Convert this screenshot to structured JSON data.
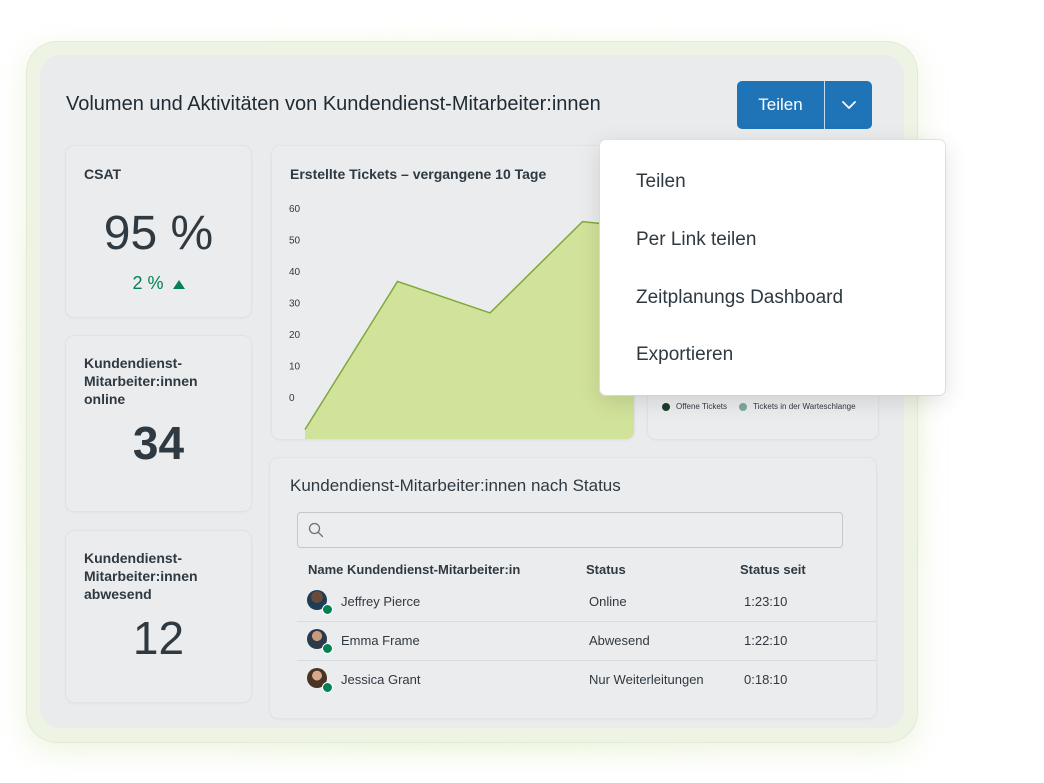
{
  "header": {
    "title": "Volumen und Aktivitäten von Kundendienst-Mitarbeiter:innen",
    "share_label": "Teilen",
    "brand_color": "#1f73b7"
  },
  "kpis": {
    "csat": {
      "label": "CSAT",
      "value": "95 %",
      "trend": "2 %",
      "trend_color": "#038153"
    },
    "online": {
      "label": "Kundendienst-Mitarbeiter:innen online",
      "value": "34"
    },
    "absent": {
      "label": "Kundendienst-Mitarbeiter:innen abwesend",
      "value": "12"
    }
  },
  "chart_data": {
    "type": "area",
    "title": "Erstellte Tickets – vergangene 10 Tage",
    "yticks": [
      "60",
      "50",
      "40",
      "30",
      "20",
      "10",
      "0"
    ],
    "ylim": [
      0,
      60
    ],
    "x": [
      0,
      1,
      2,
      3,
      4
    ],
    "values": [
      -10,
      37,
      27,
      56,
      53
    ],
    "fill_color": "#d1e29a",
    "line_color": "#7fa83a",
    "grid": false
  },
  "legend": {
    "items": [
      {
        "label": "Offene Tickets",
        "color": "#1e3d2a"
      },
      {
        "label": "Tickets in der Warteschlange",
        "color": "#7ea8a0"
      }
    ]
  },
  "status_table": {
    "title": "Kundendienst-Mitarbeiter:innen nach Status",
    "search_icon": "search-icon",
    "columns": [
      "Name Kundendienst-Mitarbeiter:in",
      "Status",
      "Status seit"
    ],
    "rows": [
      {
        "name": "Jeffrey Pierce",
        "status": "Online",
        "since": "1:23:10"
      },
      {
        "name": "Emma Frame",
        "status": "Abwesend",
        "since": "1:22:10"
      },
      {
        "name": "Jessica Grant",
        "status": "Nur Weiterleitungen",
        "since": "0:18:10"
      }
    ]
  },
  "share_menu": {
    "items": [
      "Teilen",
      "Per Link teilen",
      "Zeitplanungs Dashboard",
      "Exportieren"
    ]
  }
}
